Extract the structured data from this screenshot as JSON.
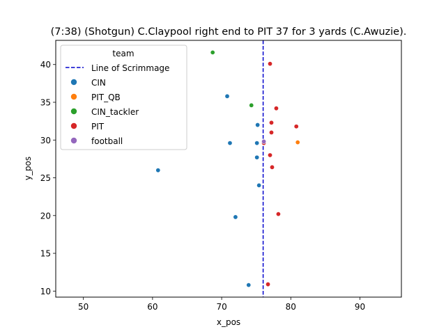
{
  "chart_data": {
    "type": "scatter",
    "title": "(7:38) (Shotgun) C.Claypool right end to PIT 37 for 3 yards (C.Awuzie).",
    "xlabel": "x_pos",
    "ylabel": "y_pos",
    "xlim": [
      46,
      96
    ],
    "ylim": [
      9.2,
      43.2
    ],
    "xticks": [
      50,
      60,
      70,
      80,
      90
    ],
    "yticks": [
      10,
      15,
      20,
      25,
      30,
      35,
      40
    ],
    "grid": false,
    "line_of_scrimmage": {
      "name": "Line of Scrimmage",
      "x": 76,
      "color": "#0000cc"
    },
    "legend": {
      "title": "team",
      "placement": "upper-left"
    },
    "series": [
      {
        "name": "CIN",
        "color": "#1f77b4",
        "points": [
          [
            70.8,
            35.8
          ],
          [
            75.2,
            32.0
          ],
          [
            71.2,
            29.6
          ],
          [
            75.1,
            29.6
          ],
          [
            75.1,
            27.7
          ],
          [
            60.8,
            26.0
          ],
          [
            75.4,
            24.0
          ],
          [
            72.0,
            19.8
          ],
          [
            73.9,
            10.8
          ]
        ]
      },
      {
        "name": "PIT_QB",
        "color": "#ff7f0e",
        "points": [
          [
            81.0,
            29.7
          ]
        ]
      },
      {
        "name": "CIN_tackler",
        "color": "#2ca02c",
        "points": [
          [
            68.7,
            41.6
          ],
          [
            74.3,
            34.6
          ]
        ]
      },
      {
        "name": "PIT",
        "color": "#d62728",
        "points": [
          [
            77.0,
            40.1
          ],
          [
            77.9,
            34.2
          ],
          [
            77.2,
            32.3
          ],
          [
            80.8,
            31.8
          ],
          [
            77.2,
            31.0
          ],
          [
            76.1,
            29.6
          ],
          [
            77.0,
            28.0
          ],
          [
            77.3,
            26.4
          ],
          [
            78.2,
            20.2
          ],
          [
            76.7,
            10.9
          ]
        ]
      },
      {
        "name": "football",
        "color": "#9467bd",
        "points": [
          [
            76.1,
            29.8
          ]
        ]
      }
    ]
  }
}
